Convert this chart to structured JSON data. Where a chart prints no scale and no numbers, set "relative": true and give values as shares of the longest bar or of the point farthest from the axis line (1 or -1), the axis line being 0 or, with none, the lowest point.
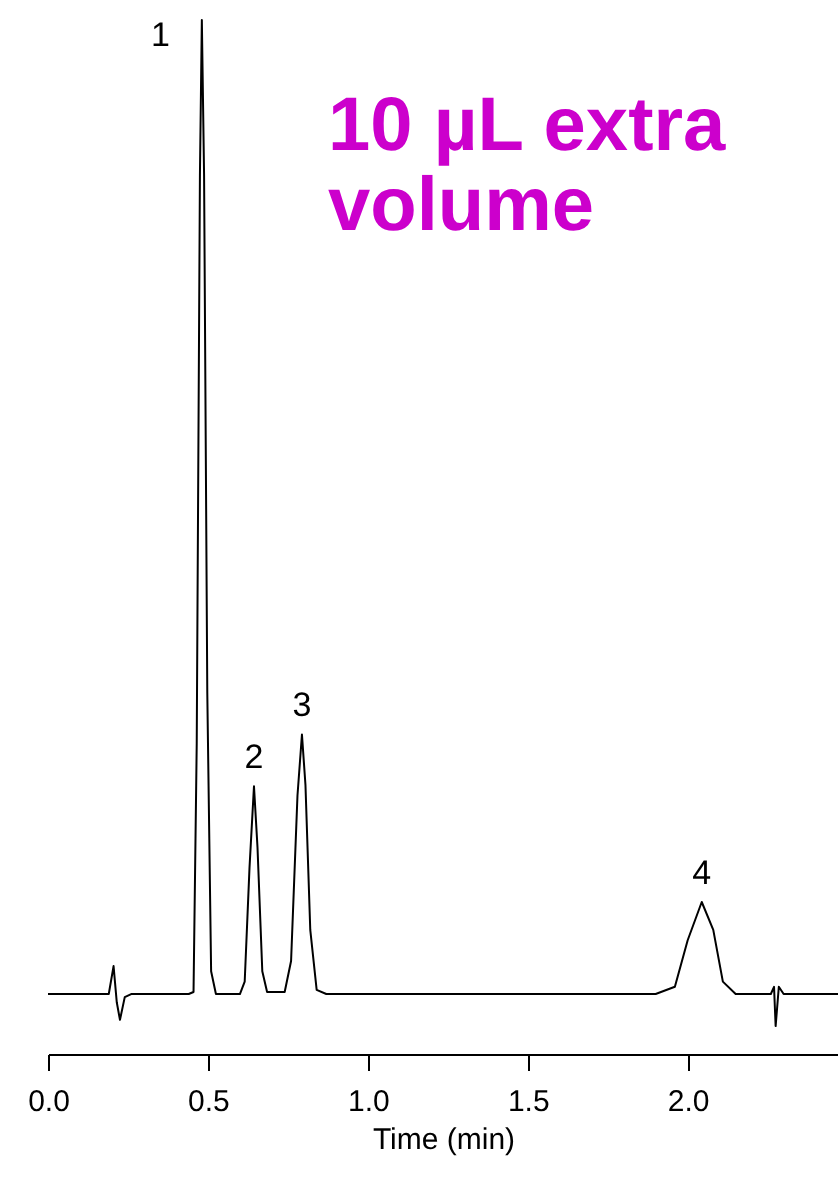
{
  "chart_data": {
    "type": "line",
    "xlabel": "Time (min)",
    "relative": true,
    "xlim": [
      0,
      2.47
    ],
    "xticks": [
      {
        "value": 0,
        "label": "0.0"
      },
      {
        "value": 0.5,
        "label": "0.5"
      },
      {
        "value": 1,
        "label": "1.0"
      },
      {
        "value": 1.5,
        "label": "1.5"
      },
      {
        "value": 2,
        "label": "2.0"
      }
    ],
    "x": [
      0,
      0.19,
      0.205,
      0.215,
      0.225,
      0.24,
      0.26,
      0.44,
      0.455,
      0.465,
      0.475,
      0.481,
      0.488,
      0.498,
      0.51,
      0.525,
      0.6,
      0.615,
      0.63,
      0.644,
      0.655,
      0.67,
      0.685,
      0.74,
      0.76,
      0.78,
      0.794,
      0.805,
      0.82,
      0.84,
      0.87,
      1.9,
      1.96,
      2.0,
      2.044,
      2.08,
      2.11,
      2.15,
      2.26,
      2.27,
      2.275,
      2.285,
      2.3,
      2.47
    ],
    "series": [
      {
        "color": "#000000",
        "values": [
          0.058,
          0.058,
          0.085,
          0.05,
          0.033,
          0.055,
          0.058,
          0.058,
          0.06,
          0.3,
          0.85,
          1,
          0.85,
          0.35,
          0.08,
          0.058,
          0.058,
          0.07,
          0.18,
          0.259,
          0.2,
          0.08,
          0.06,
          0.06,
          0.09,
          0.25,
          0.309,
          0.26,
          0.12,
          0.062,
          0.058,
          0.058,
          0.065,
          0.11,
          0.147,
          0.12,
          0.07,
          0.058,
          0.058,
          0.065,
          0.027,
          0.065,
          0.058,
          0.058
        ]
      }
    ],
    "annotations": [
      {
        "text": "1",
        "x": 0.481,
        "y": 1
      },
      {
        "text": "2",
        "x": 0.644,
        "y": 0.259
      },
      {
        "text": "3",
        "x": 0.794,
        "y": 0.309
      },
      {
        "text": "4",
        "x": 2.044,
        "y": 0.147
      },
      "10 µL extra\nvolume"
    ]
  }
}
